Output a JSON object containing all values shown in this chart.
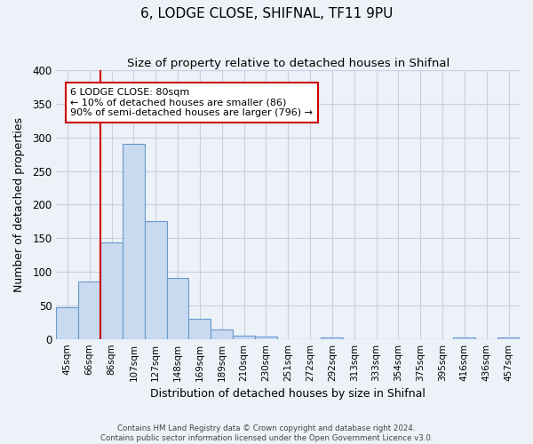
{
  "title": "6, LODGE CLOSE, SHIFNAL, TF11 9PU",
  "subtitle": "Size of property relative to detached houses in Shifnal",
  "xlabel": "Distribution of detached houses by size in Shifnal",
  "ylabel": "Number of detached properties",
  "bar_labels": [
    "45sqm",
    "66sqm",
    "86sqm",
    "107sqm",
    "127sqm",
    "148sqm",
    "169sqm",
    "189sqm",
    "210sqm",
    "230sqm",
    "251sqm",
    "272sqm",
    "292sqm",
    "313sqm",
    "333sqm",
    "354sqm",
    "375sqm",
    "395sqm",
    "416sqm",
    "436sqm",
    "457sqm"
  ],
  "bar_values": [
    47,
    86,
    144,
    291,
    176,
    91,
    30,
    14,
    5,
    3,
    0,
    0,
    2,
    0,
    0,
    0,
    0,
    0,
    2,
    0,
    2
  ],
  "bar_color": "#c8d9f0",
  "bar_edge_color": "#6699cc",
  "ylim": [
    0,
    400
  ],
  "yticks": [
    0,
    50,
    100,
    150,
    200,
    250,
    300,
    350,
    400
  ],
  "property_line_label": "6 LODGE CLOSE: 80sqm",
  "annotation_line1": "← 10% of detached houses are smaller (86)",
  "annotation_line2": "90% of semi-detached houses are larger (796) →",
  "annotation_box_color": "#ffffff",
  "annotation_box_edge": "#cc0000",
  "property_line_color": "#cc0000",
  "footer1": "Contains HM Land Registry data © Crown copyright and database right 2024.",
  "footer2": "Contains public sector information licensed under the Open Government Licence v3.0.",
  "bg_color": "#edf1f8",
  "plot_bg_color": "#edf1f8",
  "grid_color": "#c8d0e0"
}
